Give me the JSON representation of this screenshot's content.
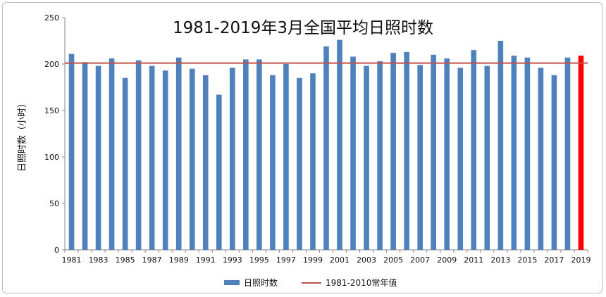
{
  "chart_data": {
    "type": "bar",
    "title": "1981-2019年3月全国平均日照时数",
    "ylabel": "日照时数（小时）",
    "xlabel": "",
    "ylim": [
      0,
      250
    ],
    "yticks": [
      0,
      50,
      100,
      150,
      200,
      250
    ],
    "categories": [
      "1981",
      "1982",
      "1983",
      "1984",
      "1985",
      "1986",
      "1987",
      "1988",
      "1989",
      "1990",
      "1991",
      "1992",
      "1993",
      "1994",
      "1995",
      "1996",
      "1997",
      "1998",
      "1999",
      "2000",
      "2001",
      "2002",
      "2003",
      "2004",
      "2005",
      "2006",
      "2007",
      "2008",
      "2009",
      "2010",
      "2011",
      "2012",
      "2013",
      "2014",
      "2015",
      "2016",
      "2017",
      "2018",
      "2019"
    ],
    "xtick_labels": [
      "1981",
      "1983",
      "1985",
      "1987",
      "1989",
      "1991",
      "1993",
      "1995",
      "1997",
      "1999",
      "2001",
      "2003",
      "2005",
      "2007",
      "2009",
      "2011",
      "2013",
      "2015",
      "2017",
      "2019"
    ],
    "series": [
      {
        "name": "日照时数",
        "values": [
          211,
          202,
          198,
          206,
          185,
          204,
          198,
          193,
          207,
          195,
          188,
          167,
          196,
          205,
          205,
          188,
          200,
          185,
          190,
          219,
          226,
          208,
          198,
          203,
          212,
          213,
          199,
          210,
          206,
          196,
          215,
          198,
          225,
          209,
          207,
          196,
          188,
          207,
          209
        ],
        "color": "#4f81bd",
        "highlight": {
          "category": "2019",
          "color": "#ff0000"
        }
      }
    ],
    "reference_line": {
      "name": "1981-2010常年值",
      "value": 201,
      "color": "#c0504d"
    },
    "grid": false,
    "legend": "bottom"
  }
}
